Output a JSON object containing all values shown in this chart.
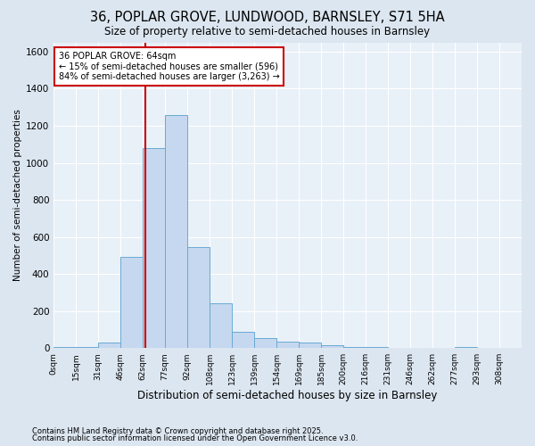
{
  "title": "36, POPLAR GROVE, LUNDWOOD, BARNSLEY, S71 5HA",
  "subtitle": "Size of property relative to semi-detached houses in Barnsley",
  "xlabel": "Distribution of semi-detached houses by size in Barnsley",
  "ylabel": "Number of semi-detached properties",
  "bin_labels": [
    "0sqm",
    "15sqm",
    "31sqm",
    "46sqm",
    "62sqm",
    "77sqm",
    "92sqm",
    "108sqm",
    "123sqm",
    "139sqm",
    "154sqm",
    "169sqm",
    "185sqm",
    "200sqm",
    "216sqm",
    "231sqm",
    "246sqm",
    "262sqm",
    "277sqm",
    "293sqm",
    "308sqm"
  ],
  "bar_values": [
    5,
    5,
    30,
    490,
    1080,
    1260,
    545,
    240,
    90,
    55,
    35,
    30,
    15,
    5,
    5,
    0,
    0,
    0,
    5,
    0,
    0
  ],
  "bar_color": "#c5d8ef",
  "bar_edge_color": "#6aaad4",
  "vline_color": "#cc0000",
  "annotation_title": "36 POPLAR GROVE: 64sqm",
  "annotation_line1": "← 15% of semi-detached houses are smaller (596)",
  "annotation_line2": "84% of semi-detached houses are larger (3,263) →",
  "annotation_box_color": "#cc0000",
  "ylim": [
    0,
    1650
  ],
  "yticks": [
    0,
    200,
    400,
    600,
    800,
    1000,
    1200,
    1400,
    1600
  ],
  "footer1": "Contains HM Land Registry data © Crown copyright and database right 2025.",
  "footer2": "Contains public sector information licensed under the Open Government Licence v3.0.",
  "bg_color": "#dce6f0",
  "plot_bg_color": "#e8f0f8",
  "grid_color": "#ffffff",
  "title_fontsize": 10.5,
  "subtitle_fontsize": 8.5,
  "ylabel_fontsize": 7.5,
  "xlabel_fontsize": 8.5
}
